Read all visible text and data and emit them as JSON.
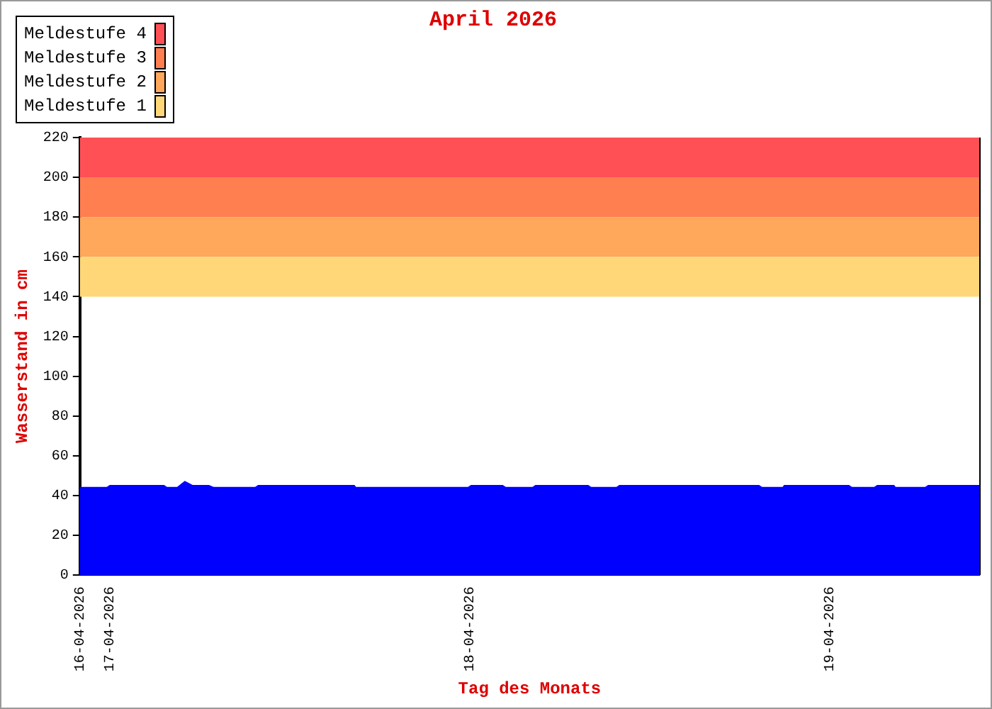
{
  "chart_data": {
    "type": "area",
    "title": "April 2026",
    "xlabel": "Tag des Monats",
    "ylabel": "Wasserstand in cm",
    "x": [
      "2026-04-16T22:00",
      "2026-04-16T23:48",
      "2026-04-17T00:00",
      "2026-04-17T03:36",
      "2026-04-17T03:48",
      "2026-04-17T04:30",
      "2026-04-17T05:00",
      "2026-04-17T05:30",
      "2026-04-17T06:36",
      "2026-04-17T06:54",
      "2026-04-17T09:42",
      "2026-04-17T09:54",
      "2026-04-17T16:18",
      "2026-04-17T16:24",
      "2026-04-17T23:54",
      "2026-04-18T00:06",
      "2026-04-18T02:12",
      "2026-04-18T02:24",
      "2026-04-18T04:12",
      "2026-04-18T04:24",
      "2026-04-18T07:54",
      "2026-04-18T08:06",
      "2026-04-18T09:48",
      "2026-04-18T10:00",
      "2026-04-18T19:18",
      "2026-04-18T19:30",
      "2026-04-18T20:54",
      "2026-04-18T21:00",
      "2026-04-19T01:18",
      "2026-04-19T01:30",
      "2026-04-19T03:00",
      "2026-04-19T03:12",
      "2026-04-19T04:18",
      "2026-04-19T04:24",
      "2026-04-19T06:24",
      "2026-04-19T06:36",
      "2026-04-19T10:00"
    ],
    "series": [
      {
        "color": "#0000ff",
        "values": [
          44,
          44,
          45,
          45,
          44,
          44,
          47,
          45,
          45,
          44,
          44,
          45,
          45,
          44,
          44,
          45,
          45,
          44,
          44,
          45,
          45,
          44,
          44,
          45,
          45,
          44,
          44,
          45,
          45,
          44,
          44,
          45,
          45,
          44,
          44,
          45,
          45
        ]
      }
    ],
    "xlim": [
      "2026-04-16T22:00",
      "2026-04-19T10:00"
    ],
    "xticks": [
      {
        "value": "2026-04-16T22:00",
        "label": "16-04-2026"
      },
      {
        "value": "2026-04-17",
        "label": "17-04-2026"
      },
      {
        "value": "2026-04-18",
        "label": "18-04-2026"
      },
      {
        "value": "2026-04-19",
        "label": "19-04-2026"
      }
    ],
    "ylim": [
      0,
      220
    ],
    "yticks": [
      0,
      20,
      40,
      60,
      80,
      100,
      120,
      140,
      160,
      180,
      200,
      220
    ],
    "bands": [
      {
        "axis": "y",
        "from": 200,
        "to": 220,
        "label": "Meldestufe 4",
        "color": "#ff5055"
      },
      {
        "axis": "y",
        "from": 180,
        "to": 200,
        "label": "Meldestufe 3",
        "color": "#ff7f50"
      },
      {
        "axis": "y",
        "from": 160,
        "to": 180,
        "label": "Meldestufe 2",
        "color": "#ffa75a"
      },
      {
        "axis": "y",
        "from": 140,
        "to": 160,
        "label": "Meldestufe 1",
        "color": "#ffd778"
      }
    ],
    "grid": false,
    "legend": "top left"
  }
}
